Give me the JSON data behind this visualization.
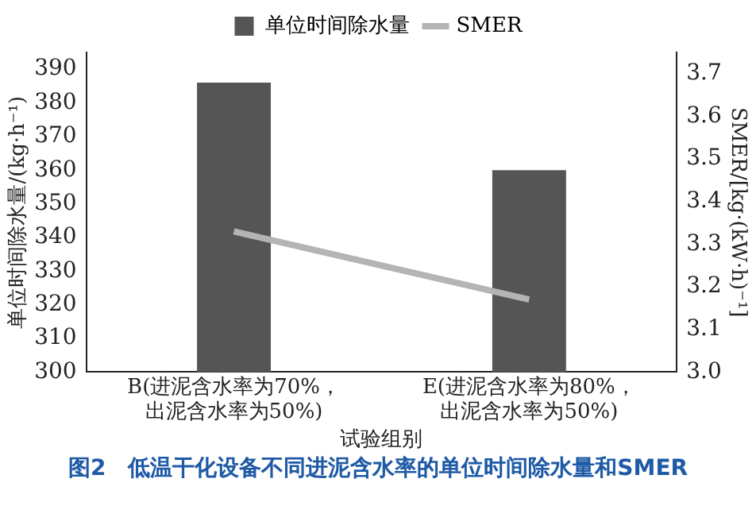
{
  "chart_data": {
    "type": "bar",
    "title": "图2　低温干化设备不同进泥含水率的单位时间除水量和SMER",
    "xlabel": "试验组别",
    "ylabel": "单位时间除水量/(kg·h⁻¹)",
    "y2label": "SMER/[kg·(kW·h)⁻¹]",
    "categories": [
      "B(进泥含水率为70%，出泥含水率为50%)",
      "E(进泥含水率为80%，出泥含水率为50%)"
    ],
    "series": [
      {
        "name": "单位时间除水量",
        "color": "#555555",
        "values": [
          386,
          360
        ]
      },
      {
        "name": "SMER",
        "type": "line",
        "color": "#b4b4b4",
        "axis": "y2",
        "values": [
          3.33,
          3.17
        ]
      }
    ],
    "ylim": [
      300,
      395
    ],
    "yticks": [
      300,
      310,
      320,
      330,
      340,
      350,
      360,
      370,
      380,
      390
    ],
    "y2lim": [
      3.0,
      3.75
    ],
    "y2ticks": [
      {
        "value": 3.0,
        "label": "3.0"
      },
      3.1,
      3.2,
      3.3,
      3.4,
      3.5,
      3.6,
      3.7
    ],
    "grid": false,
    "legend": "top right",
    "marker": "none"
  }
}
